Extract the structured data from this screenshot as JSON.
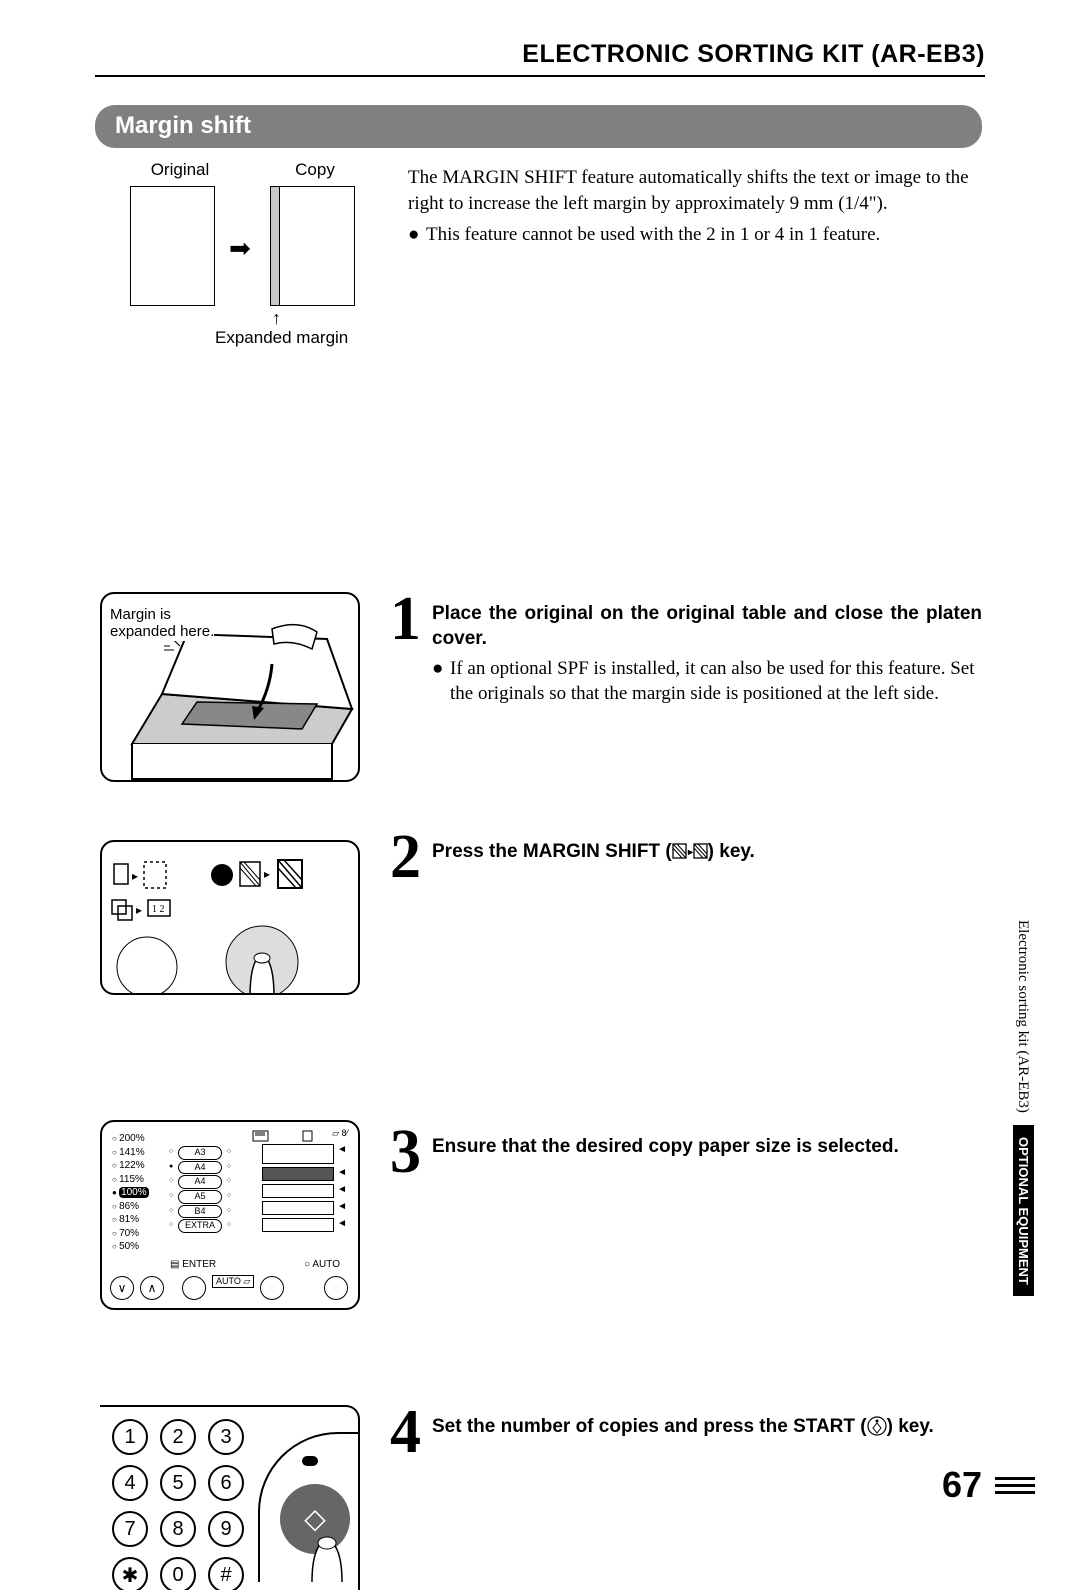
{
  "header": "ELECTRONIC SORTING KIT (AR-EB3)",
  "section_title": "Margin shift",
  "oc": {
    "original_label": "Original",
    "copy_label": "Copy",
    "expanded_label": "Expanded margin"
  },
  "intro": {
    "paragraph": "The MARGIN SHIFT feature automatically shifts the text or image to the right to increase the left margin by approximately 9 mm (1/4\").",
    "bullet": "This feature cannot be used with the 2 in 1 or 4 in 1 feature."
  },
  "steps": {
    "s1": {
      "num": "1",
      "heading": "Place the original on the original table and close the platen cover.",
      "bullet": "If an optional SPF is installed, it can also be used for this feature. Set the originals so that the margin side is positioned at the left side.",
      "fig_caption_l1": "Margin is",
      "fig_caption_l2": "expanded here."
    },
    "s2": {
      "num": "2",
      "heading_pre": "Press the MARGIN SHIFT (",
      "heading_post": ") key."
    },
    "s3": {
      "num": "3",
      "heading": "Ensure that the desired copy paper size is selected."
    },
    "s4": {
      "num": "4",
      "heading_pre": "Set the number of copies and press the START (",
      "heading_post": ") key."
    }
  },
  "fig3": {
    "ratios": [
      "200%",
      "141%",
      "122%",
      "115%",
      "100%",
      "86%",
      "81%",
      "70%",
      "50%"
    ],
    "ratio_selected": "100%",
    "papers": [
      "A3",
      "A4",
      "A4",
      "A5",
      "B4",
      "EXTRA"
    ],
    "paper_selected": "A4",
    "enter": "ENTER",
    "auto_box": "AUTO",
    "auto": "AUTO"
  },
  "keypad": [
    [
      "1",
      "2",
      "3"
    ],
    [
      "4",
      "5",
      "6"
    ],
    [
      "7",
      "8",
      "9"
    ],
    [
      "✱",
      "0",
      "#"
    ]
  ],
  "side": {
    "light": "Electronic sorting kit (AR-EB3)",
    "dark": "OPTIONAL EQUIPMENT"
  },
  "page_number": "67",
  "colors": {
    "band": "#808080",
    "black": "#000000"
  }
}
